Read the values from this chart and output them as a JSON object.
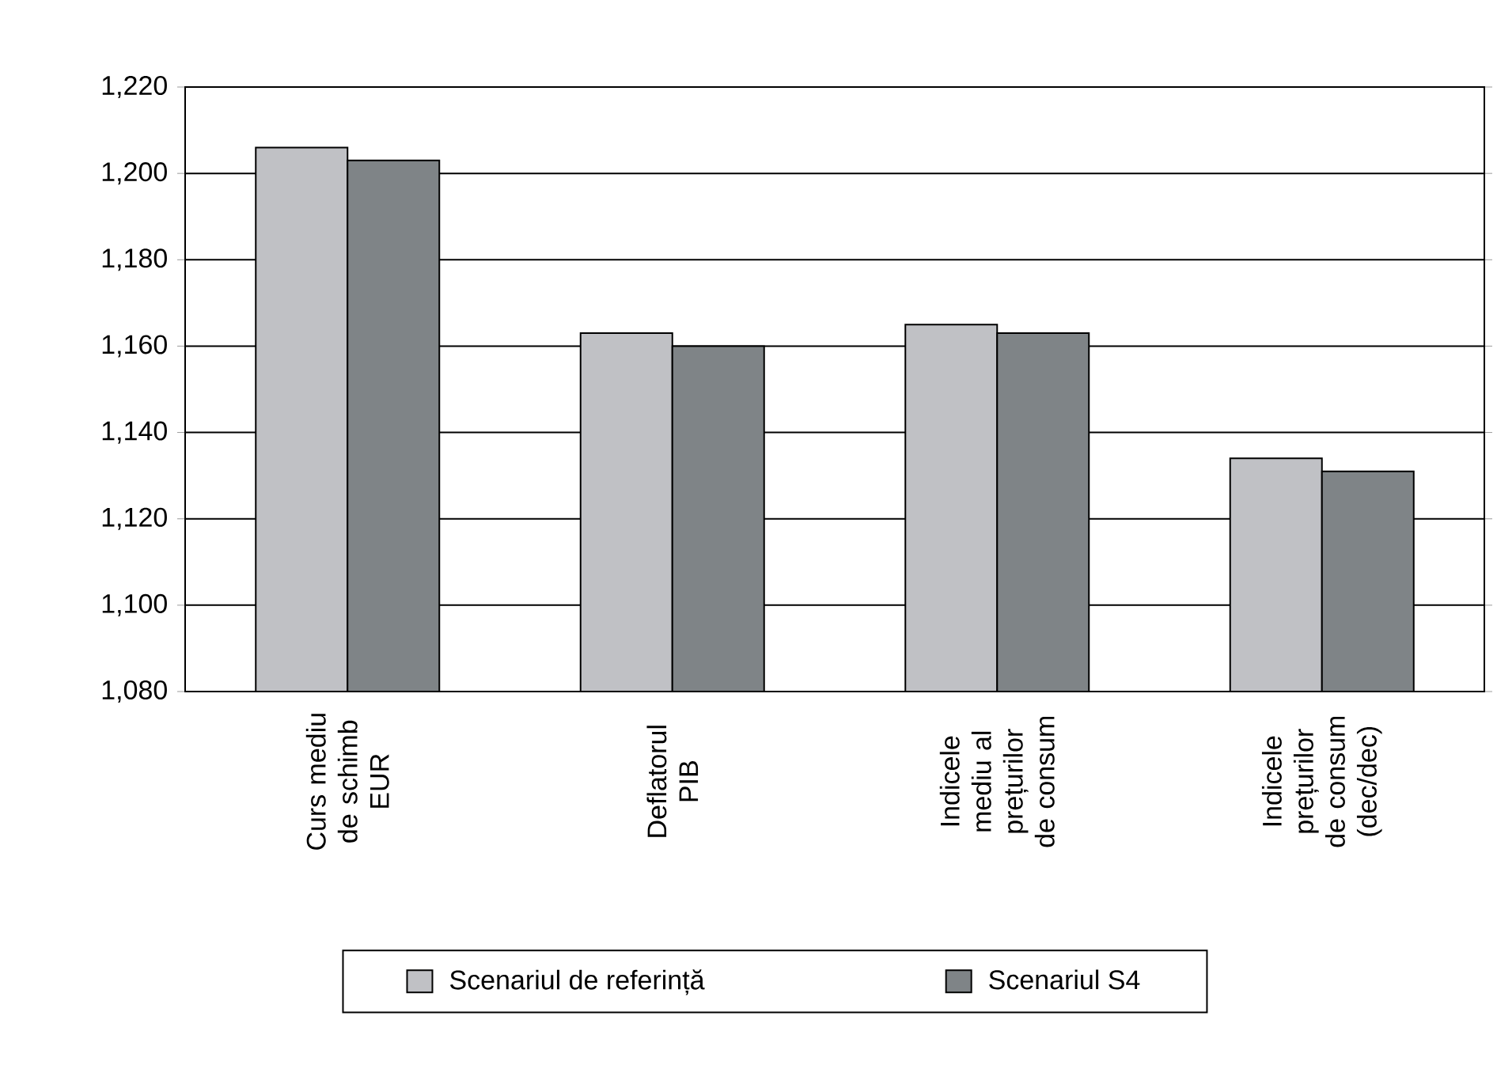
{
  "chart_data": {
    "type": "bar",
    "categories": [
      "Curs mediu de schimb EUR",
      "Deflatorul PIB",
      "Indicele mediu al prețurilor de consum",
      "Indicele prețurilor de consum (dec/dec)"
    ],
    "series": [
      {
        "name": "Scenariul de referință",
        "color": "#c0c1c5",
        "values": [
          1206,
          1163,
          1165,
          1134
        ]
      },
      {
        "name": "Scenariul S4",
        "color": "#7f8487",
        "values": [
          1203,
          1160,
          1163,
          1131
        ]
      }
    ],
    "ylim": [
      1080,
      1220
    ],
    "yticks": [
      {
        "value": 1080,
        "label": "1,080"
      },
      {
        "value": 1100,
        "label": "1,100"
      },
      {
        "value": 1120,
        "label": "1,120"
      },
      {
        "value": 1140,
        "label": "1,140"
      },
      {
        "value": 1160,
        "label": "1,160"
      },
      {
        "value": 1180,
        "label": "1,180"
      },
      {
        "value": 1200,
        "label": "1,200"
      },
      {
        "value": 1220,
        "label": "1,220"
      }
    ],
    "grid": "y",
    "legend": "bottom"
  }
}
